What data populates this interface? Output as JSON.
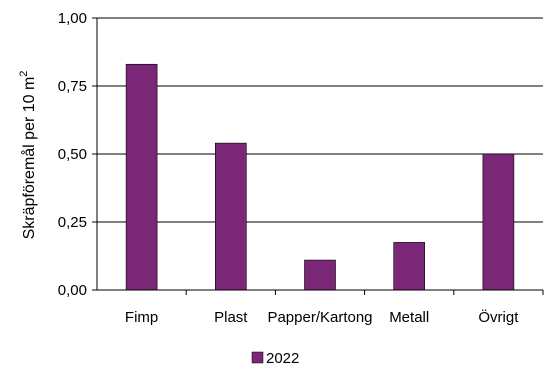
{
  "chart_data": {
    "type": "bar",
    "categories": [
      "Fimp",
      "Plast",
      "Papper/Kartong",
      "Metall",
      "Övrigt"
    ],
    "series": [
      {
        "name": "2022",
        "values": [
          0.83,
          0.54,
          0.11,
          0.175,
          0.5
        ],
        "color": "#7B2777"
      }
    ],
    "ylabel": "Skräpföremål per 10 m",
    "ylabel_superscript": "2",
    "xlabel": "",
    "ylim": [
      0,
      1
    ],
    "yticks": [
      0,
      0.25,
      0.5,
      0.75,
      1.0
    ],
    "ytick_labels": [
      "0,00",
      "0,25",
      "0,50",
      "0,75",
      "1,00"
    ],
    "grid": true,
    "legend_position": "bottom-center"
  }
}
